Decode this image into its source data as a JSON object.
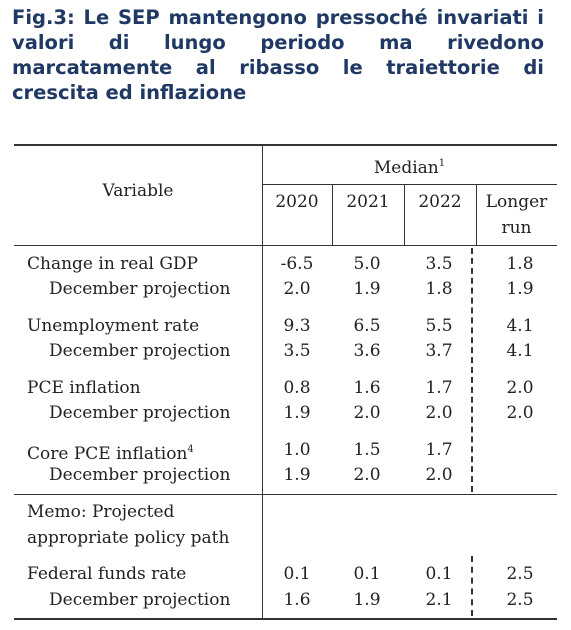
{
  "title": "Fig.3: Le SEP mantengono pressoché invariati i valori di lungo periodo ma rivedono marcatamente al ribasso le traiettorie di crescita ed inflazione",
  "table": {
    "variable_header": "Variable",
    "median_header": "Median",
    "median_note": "1",
    "years": [
      "2020",
      "2021",
      "2022"
    ],
    "longer_run_line1": "Longer",
    "longer_run_line2": "run",
    "rows": [
      {
        "label": "Change in real GDP",
        "note": "",
        "v2020": "-6.5",
        "v2021": "5.0",
        "v2022": "3.5",
        "longer": "1.8"
      },
      {
        "label": "December projection",
        "note": "",
        "v2020": "2.0",
        "v2021": "1.9",
        "v2022": "1.8",
        "longer": "1.9"
      },
      {
        "label": "Unemployment rate",
        "note": "",
        "v2020": "9.3",
        "v2021": "6.5",
        "v2022": "5.5",
        "longer": "4.1"
      },
      {
        "label": "December projection",
        "note": "",
        "v2020": "3.5",
        "v2021": "3.6",
        "v2022": "3.7",
        "longer": "4.1"
      },
      {
        "label": "PCE inflation",
        "note": "",
        "v2020": "0.8",
        "v2021": "1.6",
        "v2022": "1.7",
        "longer": "2.0"
      },
      {
        "label": "December projection",
        "note": "",
        "v2020": "1.9",
        "v2021": "2.0",
        "v2022": "2.0",
        "longer": "2.0"
      },
      {
        "label": "Core PCE inflation",
        "note": "4",
        "v2020": "1.0",
        "v2021": "1.5",
        "v2022": "1.7",
        "longer": ""
      },
      {
        "label": "December projection",
        "note": "",
        "v2020": "1.9",
        "v2021": "2.0",
        "v2022": "2.0",
        "longer": ""
      }
    ],
    "memo_line1": "Memo: Projected",
    "memo_line2": "appropriate policy path",
    "funds_rows": [
      {
        "label": "Federal funds rate",
        "v2020": "0.1",
        "v2021": "0.1",
        "v2022": "0.1",
        "longer": "2.5"
      },
      {
        "label": "December projection",
        "v2020": "1.6",
        "v2021": "1.9",
        "v2022": "2.1",
        "longer": "2.5"
      }
    ]
  }
}
